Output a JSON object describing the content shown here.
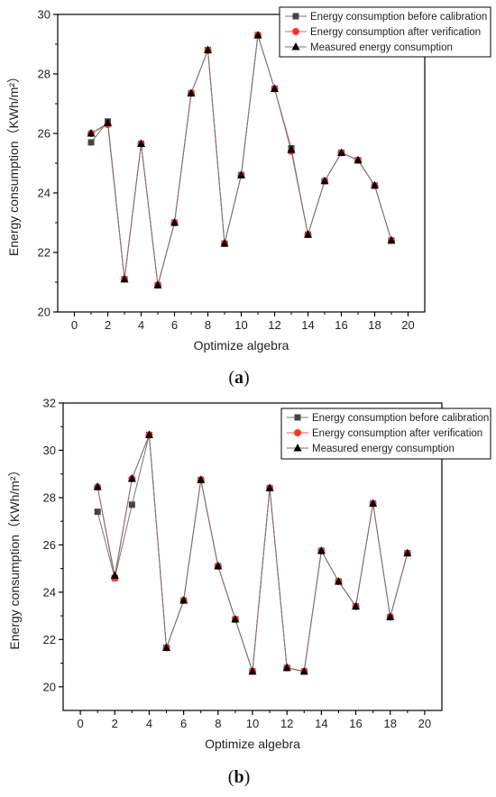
{
  "chart_data": [
    {
      "type": "line",
      "panel_label": "a",
      "xlabel": "Optimize algebra",
      "ylabel": "Energy consumption（KWh/m²）",
      "xlim": [
        -1,
        21
      ],
      "ylim": [
        20,
        30
      ],
      "xticks": [
        0,
        2,
        4,
        6,
        8,
        10,
        12,
        14,
        16,
        18,
        20
      ],
      "yticks": [
        20,
        22,
        24,
        26,
        28,
        30
      ],
      "legend_position": "top-right",
      "series": [
        {
          "name": "Energy consumption before calibration",
          "marker": "square",
          "color": "#444444",
          "x": [
            1,
            2,
            3,
            4,
            5,
            6,
            7,
            8,
            9,
            10,
            11,
            12,
            13,
            14,
            15,
            16,
            17,
            18,
            19
          ],
          "values": [
            25.7,
            26.4,
            21.1,
            25.65,
            20.9,
            23.0,
            27.35,
            28.8,
            22.3,
            24.6,
            29.3,
            27.5,
            25.5,
            22.6,
            24.4,
            25.35,
            25.1,
            24.25,
            22.4
          ]
        },
        {
          "name": "Energy consumption after verification",
          "marker": "circle",
          "color": "#ff3333",
          "x": [
            1,
            2,
            3,
            4,
            5,
            6,
            7,
            8,
            9,
            10,
            11,
            12,
            13,
            14,
            15,
            16,
            17,
            18,
            19
          ],
          "values": [
            26.0,
            26.3,
            21.1,
            25.65,
            20.9,
            23.0,
            27.35,
            28.8,
            22.3,
            24.6,
            29.3,
            27.5,
            25.4,
            22.6,
            24.4,
            25.35,
            25.1,
            24.25,
            22.4
          ]
        },
        {
          "name": "Measured energy consumption",
          "marker": "triangle",
          "color": "#000000",
          "x": [
            1,
            2,
            3,
            4,
            5,
            6,
            7,
            8,
            9,
            10,
            11,
            12,
            13,
            14,
            15,
            16,
            17,
            18,
            19
          ],
          "values": [
            26.0,
            26.35,
            21.1,
            25.65,
            20.9,
            23.0,
            27.35,
            28.8,
            22.3,
            24.6,
            29.3,
            27.5,
            25.45,
            22.6,
            24.4,
            25.35,
            25.1,
            24.25,
            22.4
          ]
        }
      ]
    },
    {
      "type": "line",
      "panel_label": "b",
      "xlabel": "Optimize algebra",
      "ylabel": "Energy consumption（KWh/m²）",
      "xlim": [
        -1,
        21
      ],
      "ylim": [
        19,
        32
      ],
      "xticks": [
        0,
        2,
        4,
        6,
        8,
        10,
        12,
        14,
        16,
        18,
        20
      ],
      "yticks": [
        20,
        22,
        24,
        26,
        28,
        30,
        32
      ],
      "legend_position": "top-right",
      "series": [
        {
          "name": "Energy consumption before calibration",
          "marker": "square",
          "color": "#444444",
          "x": [
            1,
            2,
            3,
            4,
            5,
            6,
            7,
            8,
            9,
            10,
            11,
            12,
            13,
            14,
            15,
            16,
            17,
            18,
            19
          ],
          "values": [
            27.4,
            24.6,
            27.7,
            30.65,
            21.65,
            23.65,
            28.75,
            25.1,
            22.85,
            20.65,
            28.4,
            20.8,
            20.65,
            25.75,
            24.45,
            23.4,
            27.75,
            22.95,
            25.65
          ]
        },
        {
          "name": "Energy consumption after verification",
          "marker": "circle",
          "color": "#ff3333",
          "x": [
            1,
            2,
            3,
            4,
            5,
            6,
            7,
            8,
            9,
            10,
            11,
            12,
            13,
            14,
            15,
            16,
            17,
            18,
            19
          ],
          "values": [
            28.45,
            24.6,
            28.8,
            30.65,
            21.65,
            23.65,
            28.75,
            25.1,
            22.85,
            20.65,
            28.4,
            20.8,
            20.65,
            25.75,
            24.45,
            23.4,
            27.75,
            22.95,
            25.65
          ]
        },
        {
          "name": "Measured energy consumption",
          "marker": "triangle",
          "color": "#000000",
          "x": [
            1,
            2,
            3,
            4,
            5,
            6,
            7,
            8,
            9,
            10,
            11,
            12,
            13,
            14,
            15,
            16,
            17,
            18,
            19
          ],
          "values": [
            28.45,
            24.7,
            28.8,
            30.65,
            21.65,
            23.65,
            28.75,
            25.1,
            22.85,
            20.65,
            28.4,
            20.8,
            20.65,
            25.75,
            24.45,
            23.4,
            27.75,
            22.95,
            25.65
          ]
        }
      ]
    }
  ]
}
